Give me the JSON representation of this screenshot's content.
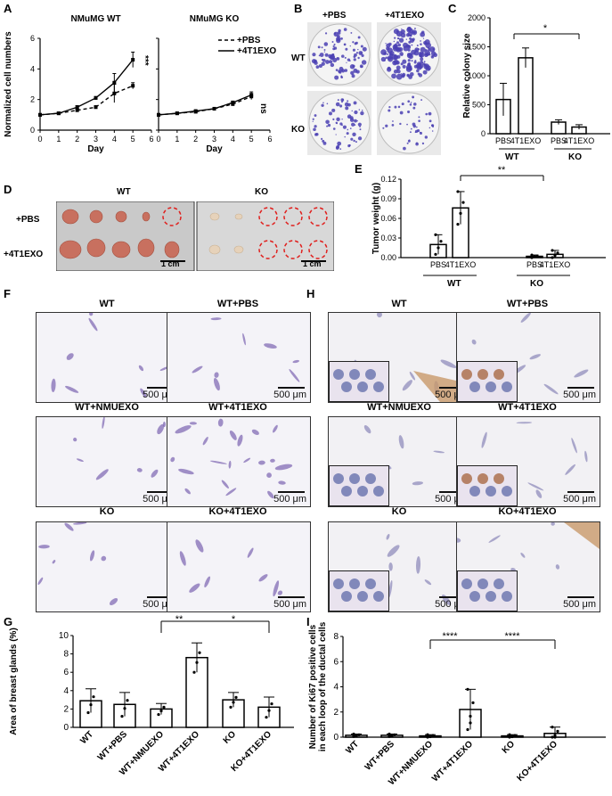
{
  "panel_labels": {
    "A": "A",
    "B": "B",
    "C": "C",
    "D": "D",
    "E": "E",
    "F": "F",
    "G": "G",
    "H": "H",
    "I": "I"
  },
  "chart_data": [
    {
      "id": "A-left",
      "type": "line",
      "title": "NMuMG WT",
      "xlabel": "Day",
      "ylabel": "Normalized cell numbers",
      "xlim": [
        0,
        6
      ],
      "ylim": [
        0,
        6
      ],
      "xticks": [
        "0",
        "1",
        "2",
        "3",
        "4",
        "5",
        "6"
      ],
      "yticks": [
        "0",
        "2",
        "4",
        "6"
      ],
      "x": [
        0,
        1,
        2,
        3,
        4,
        5
      ],
      "series": [
        {
          "name": "+PBS",
          "style": "dashed",
          "values": [
            1.0,
            1.1,
            1.3,
            1.5,
            2.4,
            2.9
          ],
          "err": [
            0,
            0.05,
            0.08,
            0.1,
            0.6,
            0.2
          ]
        },
        {
          "name": "+4T1EXO",
          "style": "solid",
          "values": [
            1.0,
            1.1,
            1.5,
            2.1,
            3.1,
            4.6
          ],
          "err": [
            0,
            0.05,
            0.1,
            0.1,
            0.6,
            0.5
          ]
        }
      ],
      "annotation": "***"
    },
    {
      "id": "A-right",
      "type": "line",
      "title": "NMuMG KO",
      "xlabel": "Day",
      "ylabel": "",
      "xlim": [
        0,
        6
      ],
      "ylim": [
        0,
        6
      ],
      "xticks": [
        "0",
        "1",
        "2",
        "3",
        "4",
        "5",
        "6"
      ],
      "x": [
        0,
        1,
        2,
        3,
        4,
        5
      ],
      "series": [
        {
          "name": "+PBS",
          "style": "dashed",
          "values": [
            1.0,
            1.1,
            1.2,
            1.4,
            1.7,
            2.2
          ],
          "err": [
            0,
            0.03,
            0.05,
            0.05,
            0.1,
            0.2
          ]
        },
        {
          "name": "+4T1EXO",
          "style": "solid",
          "values": [
            1.0,
            1.1,
            1.25,
            1.4,
            1.8,
            2.3
          ],
          "err": [
            0,
            0.03,
            0.05,
            0.05,
            0.1,
            0.2
          ]
        }
      ],
      "legend": [
        "+PBS",
        "+4T1EXO"
      ],
      "annotation": "ns"
    },
    {
      "id": "C",
      "type": "bar",
      "ylabel": "Relative colony size",
      "ylim": [
        0,
        2000
      ],
      "yticks": [
        "0",
        "500",
        "1000",
        "1500",
        "2000"
      ],
      "categories": [
        "PBS",
        "4T1EXO",
        "PBS",
        "4T1EXO"
      ],
      "groups": [
        "WT",
        "KO"
      ],
      "values": [
        590,
        1310,
        200,
        115
      ],
      "err": [
        280,
        170,
        40,
        40
      ],
      "annotation": "*"
    },
    {
      "id": "E",
      "type": "bar",
      "ylabel": "Tumor weight (g)",
      "ylim": [
        0,
        0.12
      ],
      "yticks": [
        "0.00",
        "0.03",
        "0.06",
        "0.09",
        "0.12"
      ],
      "categories": [
        "PBS",
        "4T1EXO",
        "PBS",
        "4T1EXO"
      ],
      "groups": [
        "WT",
        "KO"
      ],
      "values": [
        0.02,
        0.076,
        0.002,
        0.005
      ],
      "err": [
        0.015,
        0.025,
        0.002,
        0.006
      ],
      "annotation": "**"
    },
    {
      "id": "G",
      "type": "bar",
      "ylabel": "Area of breast glands (%)",
      "ylim": [
        0,
        10
      ],
      "yticks": [
        "0",
        "2",
        "4",
        "6",
        "8",
        "10"
      ],
      "categories": [
        "WT",
        "WT+PBS",
        "WT+NMUEXO",
        "WT+4T1EXO",
        "KO",
        "KO+4T1EXO"
      ],
      "values": [
        2.9,
        2.5,
        2.0,
        7.6,
        3.0,
        2.2
      ],
      "err": [
        1.3,
        1.3,
        0.6,
        1.6,
        0.8,
        1.1
      ],
      "annotations": [
        "**",
        "*"
      ]
    },
    {
      "id": "I",
      "type": "bar",
      "ylabel": "Number of Ki67 positive cells in each loop of the ductal cells",
      "ylim": [
        0,
        8
      ],
      "yticks": [
        "0",
        "2",
        "4",
        "6",
        "8"
      ],
      "categories": [
        "WT",
        "WT+PBS",
        "WT+NMUEXO",
        "WT+4T1EXO",
        "KO",
        "KO+4T1EXO"
      ],
      "values": [
        0.15,
        0.15,
        0.1,
        2.2,
        0.1,
        0.3
      ],
      "err": [
        0.1,
        0.1,
        0.1,
        1.6,
        0.1,
        0.5
      ],
      "annotations": [
        "****",
        "****"
      ]
    }
  ],
  "B": {
    "col1": "+PBS",
    "col2": "+4T1EXO",
    "row1": "WT",
    "row2": "KO"
  },
  "D": {
    "wt": "WT",
    "ko": "KO",
    "row1": "+PBS",
    "row2": "+4T1EXO",
    "scale": "1 cm"
  },
  "E_groups": {
    "wt": "WT",
    "ko": "KO"
  },
  "C_groups": {
    "wt": "WT",
    "ko": "KO"
  },
  "F": {
    "captions": [
      "WT",
      "WT+PBS",
      "WT+NMUEXO",
      "WT+4T1EXO",
      "KO",
      "KO+4T1EXO"
    ],
    "scale": "500 μm"
  },
  "H": {
    "captions": [
      "WT",
      "WT+PBS",
      "WT+NMUEXO",
      "WT+4T1EXO",
      "KO",
      "KO+4T1EXO"
    ],
    "scale": "500 μm"
  }
}
